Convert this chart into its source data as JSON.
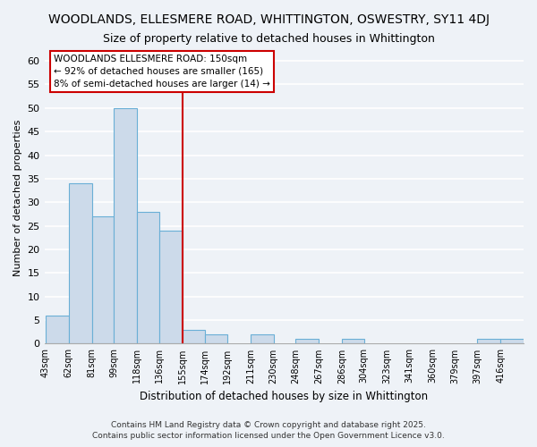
{
  "title": "WOODLANDS, ELLESMERE ROAD, WHITTINGTON, OSWESTRY, SY11 4DJ",
  "subtitle": "Size of property relative to detached houses in Whittington",
  "xlabel": "Distribution of detached houses by size in Whittington",
  "ylabel": "Number of detached properties",
  "bin_labels": [
    "43sqm",
    "62sqm",
    "81sqm",
    "99sqm",
    "118sqm",
    "136sqm",
    "155sqm",
    "174sqm",
    "192sqm",
    "211sqm",
    "230sqm",
    "248sqm",
    "267sqm",
    "286sqm",
    "304sqm",
    "323sqm",
    "341sqm",
    "360sqm",
    "379sqm",
    "397sqm",
    "416sqm"
  ],
  "bin_edges": [
    43,
    62,
    81,
    99,
    118,
    136,
    155,
    174,
    192,
    211,
    230,
    248,
    267,
    286,
    304,
    323,
    341,
    360,
    379,
    397,
    416,
    435
  ],
  "bar_values": [
    6,
    34,
    27,
    50,
    28,
    24,
    3,
    2,
    0,
    2,
    0,
    1,
    0,
    1,
    0,
    0,
    0,
    0,
    0,
    1,
    1
  ],
  "bar_color": "#ccdaea",
  "bar_edge_color": "#6aafd6",
  "vline_x": 155,
  "vline_color": "#cc0000",
  "ylim": [
    0,
    62
  ],
  "yticks": [
    0,
    5,
    10,
    15,
    20,
    25,
    30,
    35,
    40,
    45,
    50,
    55,
    60
  ],
  "annotation_text": "WOODLANDS ELLESMERE ROAD: 150sqm\n← 92% of detached houses are smaller (165)\n8% of semi-detached houses are larger (14) →",
  "footnote1": "Contains HM Land Registry data © Crown copyright and database right 2025.",
  "footnote2": "Contains public sector information licensed under the Open Government Licence v3.0.",
  "bg_color": "#eef2f7",
  "grid_color": "#ffffff",
  "annotation_fontsize": 7.5,
  "title_fontsize": 10,
  "subtitle_fontsize": 9
}
